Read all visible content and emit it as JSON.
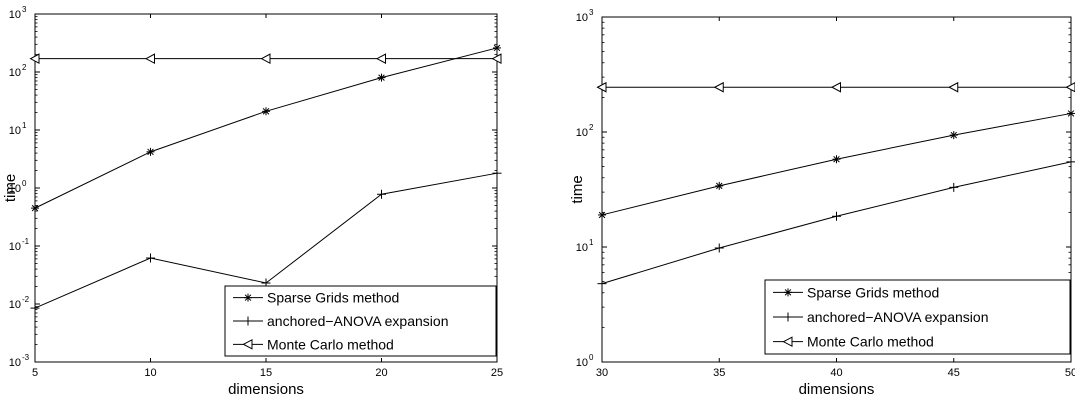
{
  "chart_data": [
    {
      "type": "line",
      "xlabel": "dimensions",
      "ylabel": "time",
      "yscale": "log",
      "ylim": [
        0.001,
        1000
      ],
      "xlim": [
        5,
        25
      ],
      "grid": false,
      "legend_position": "bottom-right",
      "x": [
        5,
        10,
        15,
        20,
        25
      ],
      "xtick_labels": [
        "5",
        "10",
        "15",
        "20",
        "25"
      ],
      "ytick_labels": [
        {
          "base": "10",
          "exp": "-3",
          "value": 0.001
        },
        {
          "base": "10",
          "exp": "-2",
          "value": 0.01
        },
        {
          "base": "10",
          "exp": "-1",
          "value": 0.1
        },
        {
          "base": "10",
          "exp": "0",
          "value": 1
        },
        {
          "base": "10",
          "exp": "1",
          "value": 10
        },
        {
          "base": "10",
          "exp": "2",
          "value": 100
        },
        {
          "base": "10",
          "exp": "3",
          "value": 1000
        }
      ],
      "series": [
        {
          "name": "Sparse Grids method",
          "marker": "asterisk",
          "values": [
            0.45,
            4.2,
            21,
            80,
            260
          ]
        },
        {
          "name": "anchored−ANOVA expansion",
          "marker": "plus",
          "values": [
            0.0085,
            0.062,
            0.023,
            0.78,
            1.8
          ]
        },
        {
          "name": "Monte Carlo method",
          "marker": "triangle-left",
          "values": [
            170,
            170,
            170,
            170,
            170
          ]
        }
      ]
    },
    {
      "type": "line",
      "xlabel": "dimensions",
      "ylabel": "time",
      "yscale": "log",
      "ylim": [
        1,
        1000
      ],
      "xlim": [
        30,
        50
      ],
      "grid": false,
      "legend_position": "bottom-right",
      "x": [
        30,
        35,
        40,
        45,
        50
      ],
      "xtick_labels": [
        "30",
        "35",
        "40",
        "45",
        "50"
      ],
      "ytick_labels": [
        {
          "base": "10",
          "exp": "0",
          "value": 1
        },
        {
          "base": "10",
          "exp": "1",
          "value": 10
        },
        {
          "base": "10",
          "exp": "2",
          "value": 100
        },
        {
          "base": "10",
          "exp": "3",
          "value": 1000
        }
      ],
      "series": [
        {
          "name": "Sparse Grids method",
          "marker": "asterisk",
          "values": [
            19,
            34,
            58,
            94,
            145
          ]
        },
        {
          "name": "anchored−ANOVA expansion",
          "marker": "plus",
          "values": [
            4.8,
            9.8,
            18.5,
            33,
            55
          ]
        },
        {
          "name": "Monte Carlo method",
          "marker": "triangle-left",
          "values": [
            245,
            245,
            245,
            245,
            245
          ]
        }
      ]
    }
  ]
}
